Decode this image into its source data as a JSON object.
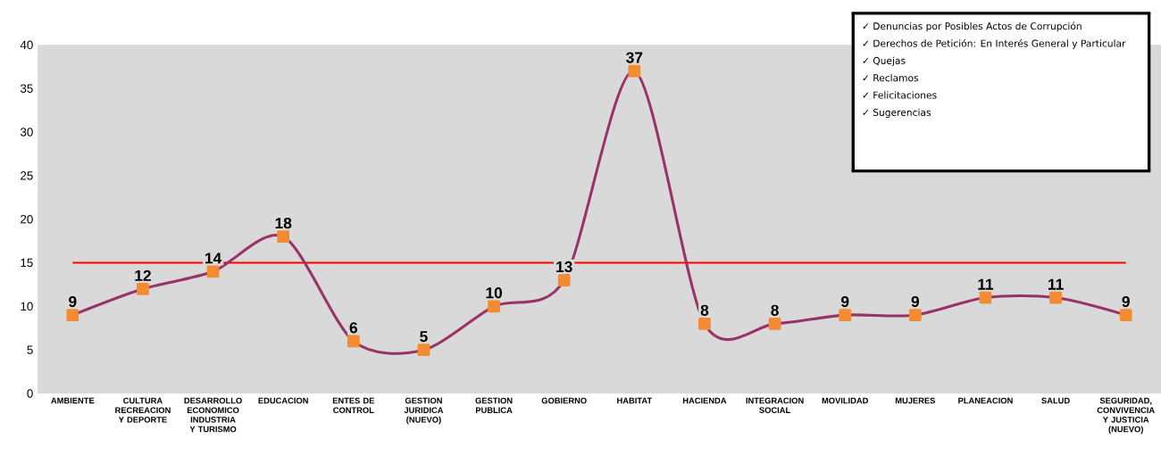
{
  "chart_data": {
    "type": "line",
    "categories": [
      "AMBIENTE",
      "CULTURA RECREACION Y DEPORTE",
      "DESARROLLO ECONOMICO INDUSTRIA Y TURISMO",
      "EDUCACION",
      "ENTES DE CONTROL",
      "GESTION JURIDICA (NUEVO)",
      "GESTION PUBLICA",
      "GOBIERNO",
      "HABITAT",
      "HACIENDA",
      "INTEGRACION SOCIAL",
      "MOVILIDAD",
      "MUJERES",
      "PLANEACION",
      "SALUD",
      "SEGURIDAD, CONVIVENCIA Y JUSTICIA (NUEVO)"
    ],
    "values": [
      9,
      12,
      14,
      18,
      6,
      5,
      10,
      13,
      37,
      8,
      8,
      9,
      9,
      11,
      11,
      9
    ],
    "color": "#993366",
    "marker": "square",
    "data_labels": true,
    "ylim": [
      0,
      40
    ],
    "yticks": [
      0,
      5,
      10,
      15,
      20,
      25,
      30,
      35,
      40
    ],
    "ref_lines": [
      {
        "axis": "y",
        "value": 15,
        "color": "#ff0000"
      }
    ],
    "annotations": [
      "✓ Denuncias por Posibles Actos de Corrupción",
      "✓ Derechos de Petición: En Interés General y Particular",
      "✓ Quejas",
      "✓ Reclamos",
      "✓ Felicitaciones",
      "✓ Sugerencias"
    ]
  }
}
